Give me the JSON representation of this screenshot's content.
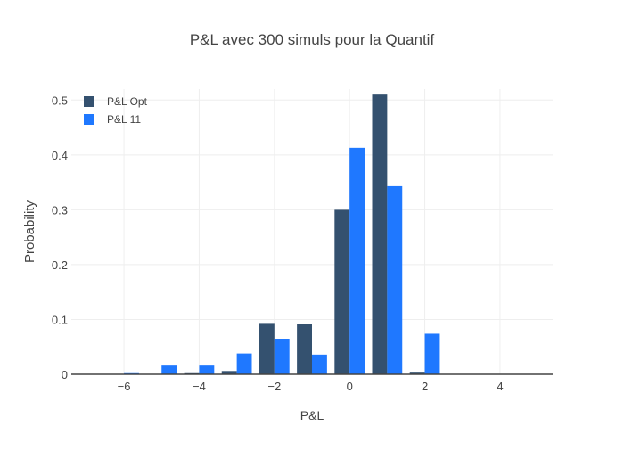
{
  "chart_data": {
    "type": "bar",
    "title": "P&L avec 300 simuls pour la Quantif",
    "xlabel": "P&L",
    "ylabel": "Probability",
    "xlim": [
      -7.4,
      5.4
    ],
    "ylim": [
      0,
      0.52
    ],
    "xticks": [
      -6,
      -4,
      -2,
      0,
      2,
      4
    ],
    "xtick_labels": [
      "−6",
      "−4",
      "−2",
      "0",
      "2",
      "4"
    ],
    "yticks": [
      0,
      0.1,
      0.2,
      0.3,
      0.4,
      0.5
    ],
    "ytick_labels": [
      "0",
      "0.1",
      "0.2",
      "0.3",
      "0.4",
      "0.5"
    ],
    "grid": true,
    "legend_position": "top-left",
    "bin_width": 1,
    "series": [
      {
        "name": "P&L Opt",
        "color": "#34516f",
        "x": [
          -6,
          -5,
          -4,
          -3,
          -2,
          -1,
          0,
          1,
          2
        ],
        "values": [
          0,
          0,
          0.002,
          0.006,
          0.092,
          0.091,
          0.3,
          0.51,
          0.003
        ]
      },
      {
        "name": "P&L 11",
        "color": "#1f78ff",
        "x": [
          -6,
          -5,
          -4,
          -3,
          -2,
          -1,
          0,
          1,
          2
        ],
        "values": [
          0.002,
          0.016,
          0.016,
          0.038,
          0.065,
          0.036,
          0.413,
          0.343,
          0.074
        ]
      }
    ]
  }
}
